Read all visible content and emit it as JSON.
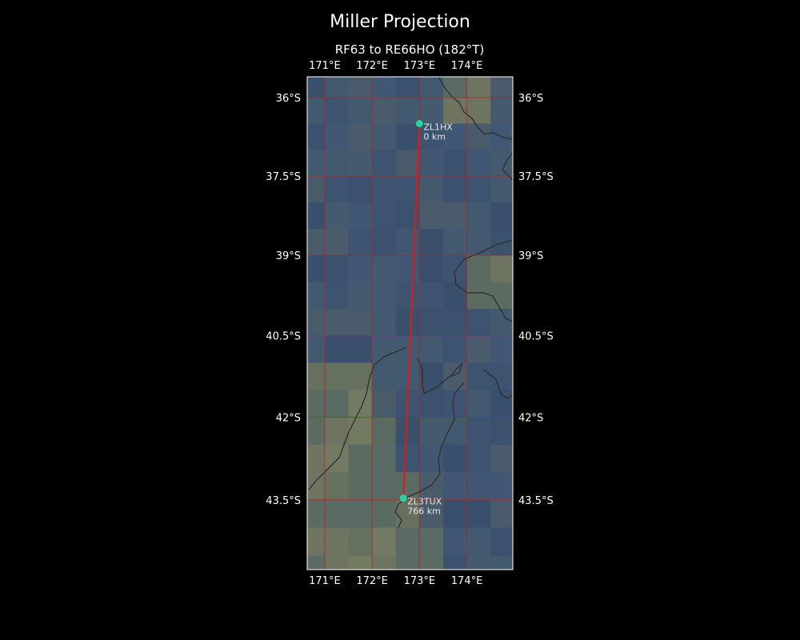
{
  "map": {
    "title": "Miller Projection",
    "subtitle": "RF63 to RE66HO (182°T)",
    "projection": "miller",
    "extent": {
      "lon": [
        170.63,
        174.97
      ],
      "lat": [
        -44.75,
        -35.6
      ]
    },
    "lon_ticks": [
      {
        "value": 171,
        "label": "171°E"
      },
      {
        "value": 172,
        "label": "172°E"
      },
      {
        "value": 173,
        "label": "173°E"
      },
      {
        "value": 174,
        "label": "174°E"
      }
    ],
    "lat_ticks": [
      {
        "value": -36,
        "label": "36°S"
      },
      {
        "value": -37.5,
        "label": "37.5°S"
      },
      {
        "value": -39,
        "label": "39°S"
      },
      {
        "value": -40.5,
        "label": "40.5°S"
      },
      {
        "value": -42,
        "label": "42°S"
      },
      {
        "value": -43.5,
        "label": "43.5°S"
      }
    ],
    "stations": [
      {
        "call": "ZL1HX",
        "dist": "0 km",
        "lon": 173.0,
        "lat": -36.5
      },
      {
        "call": "ZL3TUX",
        "dist": "766 km",
        "lon": 172.66,
        "lat": -43.47
      }
    ],
    "colors": {
      "background": "#000000",
      "path": "#e01818",
      "station": "#20d8a0",
      "grid": "#b82020",
      "frame": "#ffffff",
      "ocean": "#3e5670",
      "coastline": "#2e2e2e"
    }
  }
}
